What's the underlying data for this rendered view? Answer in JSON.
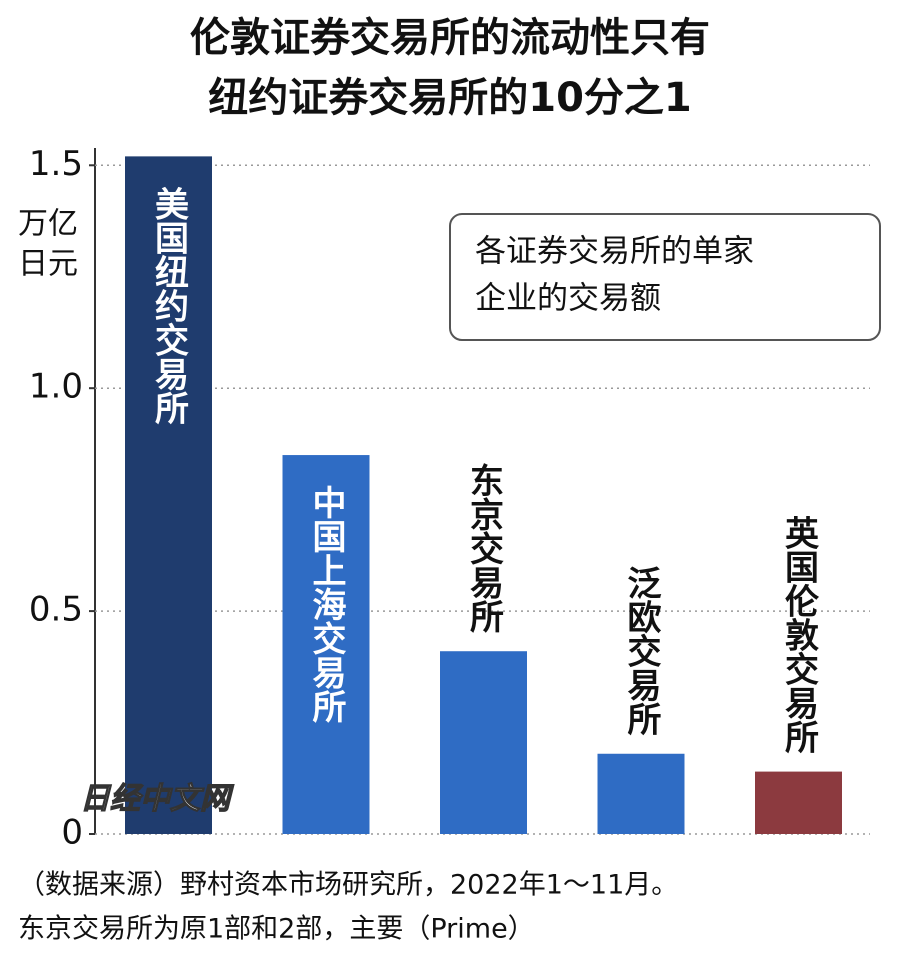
{
  "chart_data": {
    "type": "bar",
    "title": [
      "伦敦证券交易所的流动性只有",
      "纽约证券交易所的10分之1"
    ],
    "y_label": [
      "万亿",
      "日元"
    ],
    "note_box": [
      "各证券交易所的单家",
      "企业的交易额"
    ],
    "categories": [
      "美国纽约交易所",
      "中国上海交易所",
      "东京交易所",
      "泛欧交易所",
      "英国伦敦交易所"
    ],
    "values": [
      1.52,
      0.85,
      0.41,
      0.18,
      0.14
    ],
    "colors": [
      "#1f3c6e",
      "#2f6cc4",
      "#2f6cc4",
      "#2f6cc4",
      "#8c3a3f"
    ],
    "ylim": [
      0,
      1.55
    ],
    "yticks": [
      0,
      0.5,
      {
        "value": 1,
        "label": "1.0"
      },
      1.5
    ],
    "grid": true,
    "watermark": "日经中文网",
    "notes": [
      "（数据来源）野村资本市场研究所，2022年1～11月。",
      "东京交易所为原1部和2部，主要（Prime）"
    ]
  }
}
